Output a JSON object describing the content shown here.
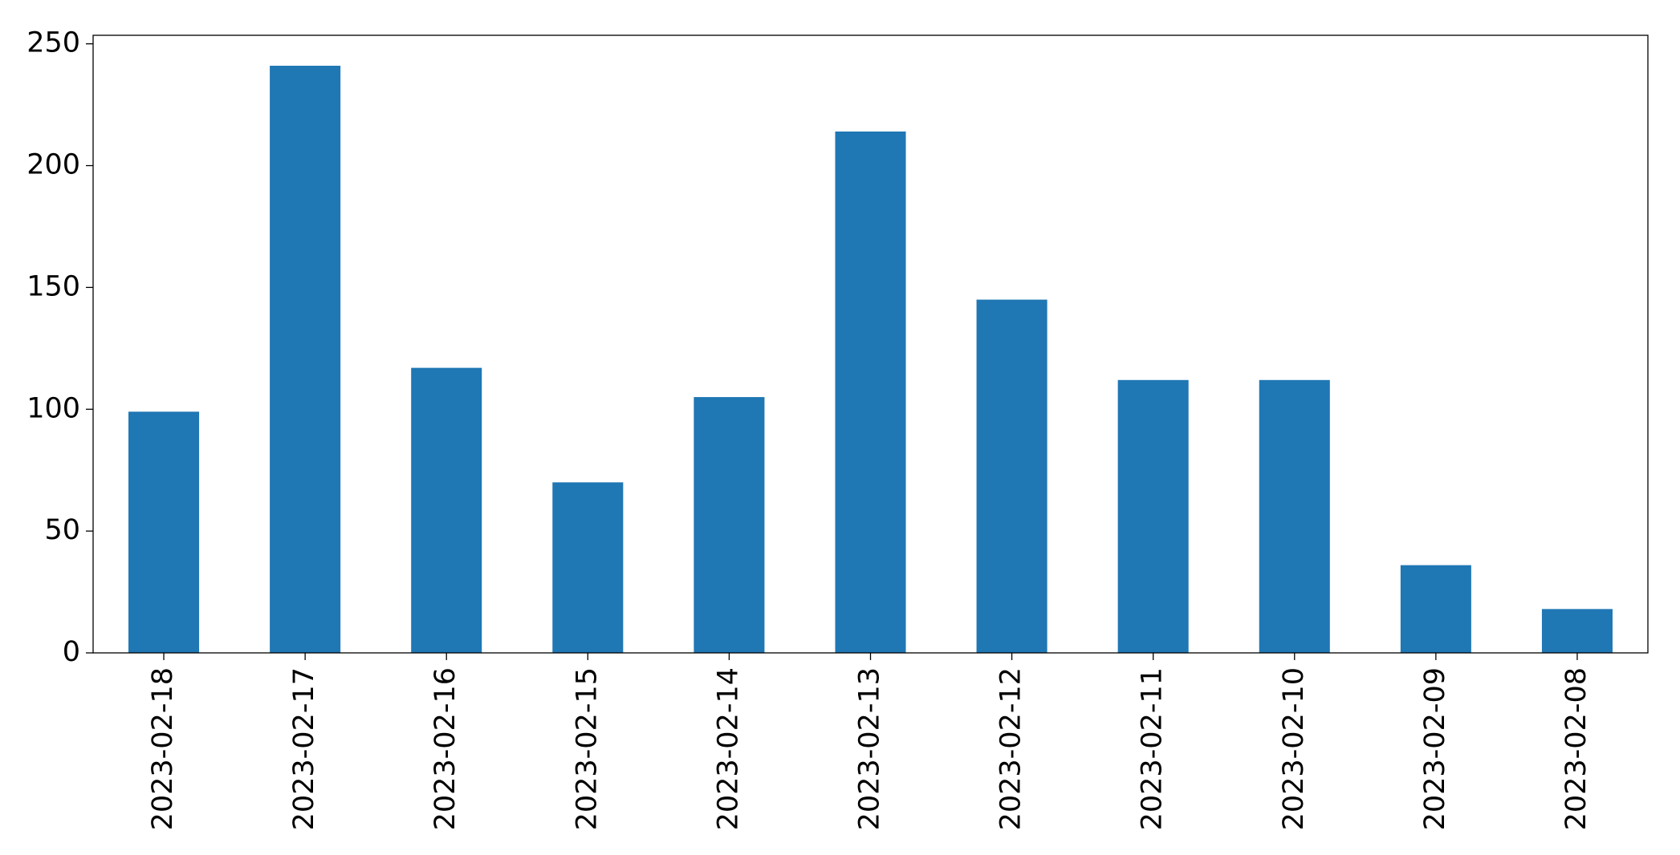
{
  "chart_data": {
    "type": "bar",
    "categories": [
      "2023-02-18",
      "2023-02-17",
      "2023-02-16",
      "2023-02-15",
      "2023-02-14",
      "2023-02-13",
      "2023-02-12",
      "2023-02-11",
      "2023-02-10",
      "2023-02-09",
      "2023-02-08"
    ],
    "values": [
      99,
      241,
      117,
      70,
      105,
      214,
      145,
      112,
      112,
      36,
      18
    ],
    "color": "#1f77b4",
    "ylim": [
      0,
      253.5
    ],
    "yticks": [
      0,
      50,
      100,
      150,
      200,
      250
    ],
    "grid": false
  }
}
